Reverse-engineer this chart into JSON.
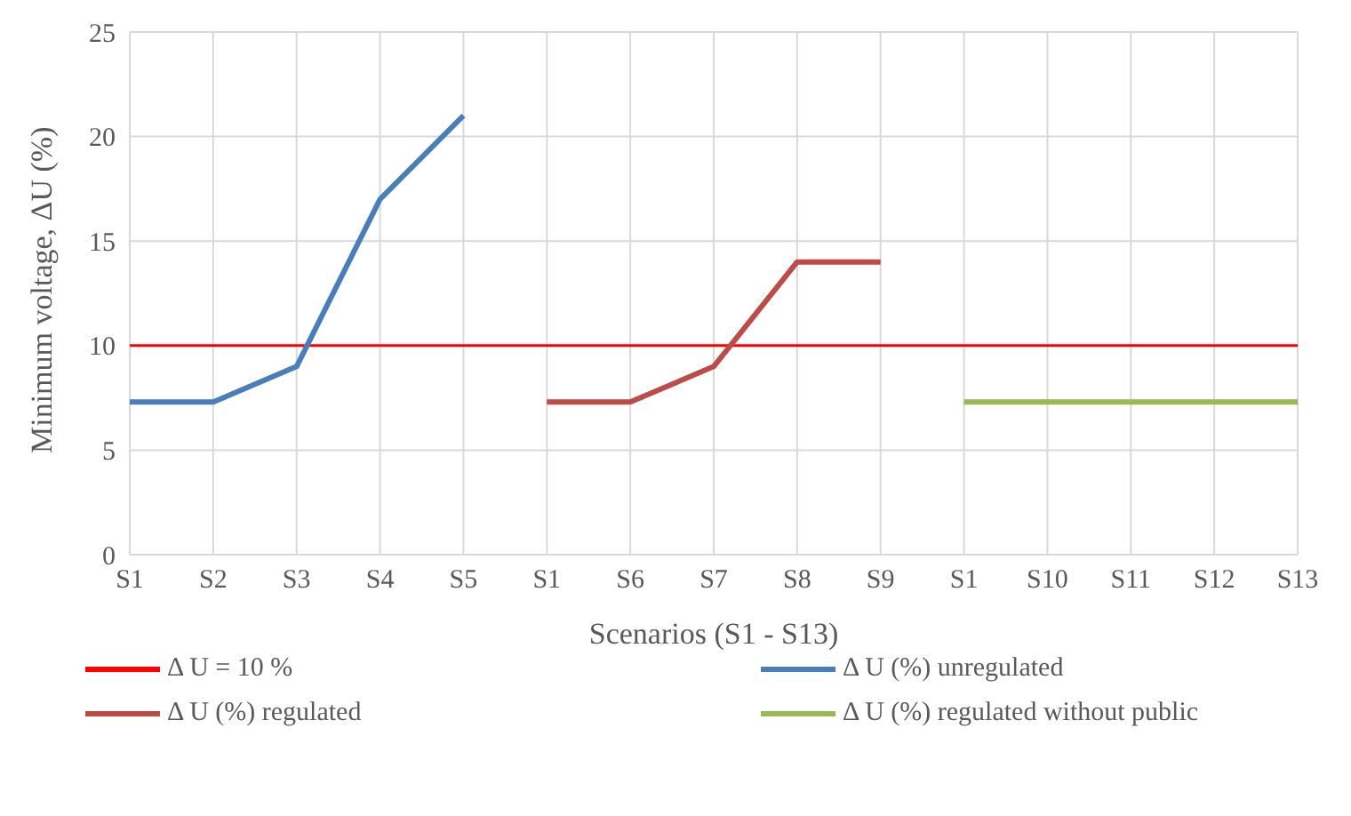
{
  "chart_data": {
    "type": "line",
    "xlabel": "Scenarios (S1 - S13)",
    "ylabel": "Minimum voltage, ΔU (%)",
    "categories": [
      "S1",
      "S2",
      "S3",
      "S4",
      "S5",
      "S1",
      "S6",
      "S7",
      "S8",
      "S9",
      "S1",
      "S10",
      "S11",
      "S12",
      "S13"
    ],
    "series": [
      {
        "name": "Δ U (%) unregulated",
        "color": "#4a7ebb",
        "values": [
          7.3,
          7.3,
          9,
          17,
          21,
          null,
          null,
          null,
          null,
          null,
          null,
          null,
          null,
          null,
          null
        ]
      },
      {
        "name": "Δ U (%) regulated",
        "color": "#be4b48",
        "values": [
          null,
          null,
          null,
          null,
          null,
          7.3,
          7.3,
          9,
          14,
          14,
          null,
          null,
          null,
          null,
          null
        ]
      },
      {
        "name": "Δ U (%) regulated without public",
        "color": "#98b954",
        "values": [
          null,
          null,
          null,
          null,
          null,
          null,
          null,
          null,
          null,
          null,
          7.3,
          7.3,
          7.3,
          7.3,
          7.3
        ]
      }
    ],
    "ref_lines": [
      {
        "axis": "y",
        "value": 10,
        "label": "Δ U = 10 %",
        "color": "#ff0000"
      }
    ],
    "ylim": [
      0,
      25
    ],
    "yticks": [
      0,
      5,
      10,
      15,
      20,
      25
    ],
    "grid": true,
    "legend": "bottom",
    "marker": "none",
    "line_style": "solid"
  }
}
